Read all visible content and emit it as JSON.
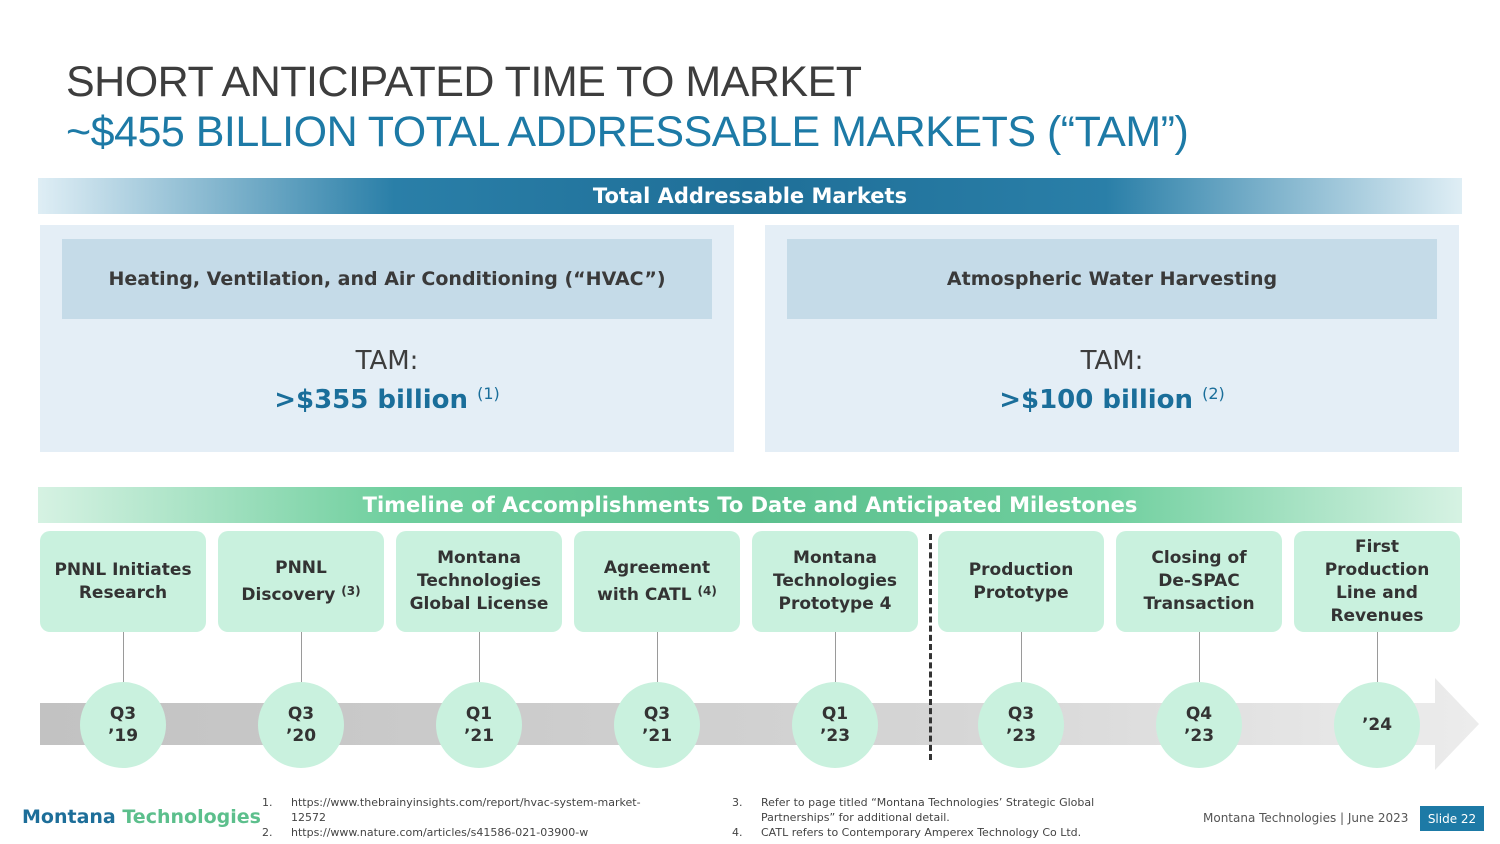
{
  "title": {
    "line1": "SHORT ANTICIPATED TIME TO MARKET",
    "line2": "~$455 BILLION TOTAL ADDRESSABLE MARKETS (“TAM”)"
  },
  "tam_section": {
    "band_label": "Total Addressable Markets",
    "markets": [
      {
        "name": "Heating, Ventilation, and Air Conditioning (“HVAC”)",
        "tam_label": "TAM:",
        "tam_value": ">$355 billion",
        "note": "(1)"
      },
      {
        "name": "Atmospheric Water Harvesting",
        "tam_label": "TAM:",
        "tam_value": ">$100 billion",
        "note": "(2)"
      }
    ]
  },
  "timeline": {
    "band_label": "Timeline of Accomplishments To Date and Anticipated Milestones",
    "milestones": [
      {
        "text": "PNNL Initiates\nResearch",
        "note": "",
        "date": "Q3\n’19"
      },
      {
        "text": "PNNL\nDiscovery",
        "note": "(3)",
        "date": "Q3\n’20"
      },
      {
        "text": "Montana\nTechnologies\nGlobal License",
        "note": "",
        "date": "Q1\n’21"
      },
      {
        "text": "Agreement\nwith CATL",
        "note": "(4)",
        "date": "Q3\n’21"
      },
      {
        "text": "Montana\nTechnologies\nPrototype 4",
        "note": "",
        "date": "Q1\n’23"
      },
      {
        "text": "Production\nPrototype",
        "note": "",
        "date": "Q3\n’23"
      },
      {
        "text": "Closing of\nDe-SPAC\nTransaction",
        "note": "",
        "date": "Q4\n’23"
      },
      {
        "text": "First\nProduction\nLine and\nRevenues",
        "note": "",
        "date": "’24"
      }
    ]
  },
  "footer": {
    "logo_part1": "Montana",
    "logo_part2": "Technologies",
    "footnotes": [
      {
        "num": "1.",
        "text": "https://www.thebrainyinsights.com/report/hvac-system-market-12572"
      },
      {
        "num": "2.",
        "text": "https://www.nature.com/articles/s41586-021-03900-w"
      },
      {
        "num": "3.",
        "text": "Refer to page titled “Montana Technologies’ Strategic Global Partnerships” for additional detail."
      },
      {
        "num": "4.",
        "text": "CATL refers to Contemporary Amperex Technology Co Ltd."
      }
    ],
    "brand_date": "Montana Technologies  |  June 2023",
    "slide": "Slide 22"
  },
  "colors": {
    "accent_blue": "#1d7aa6",
    "accent_green": "#5cc08e",
    "card_green": "#c9f1de",
    "panel_blue": "#e4eef6"
  }
}
